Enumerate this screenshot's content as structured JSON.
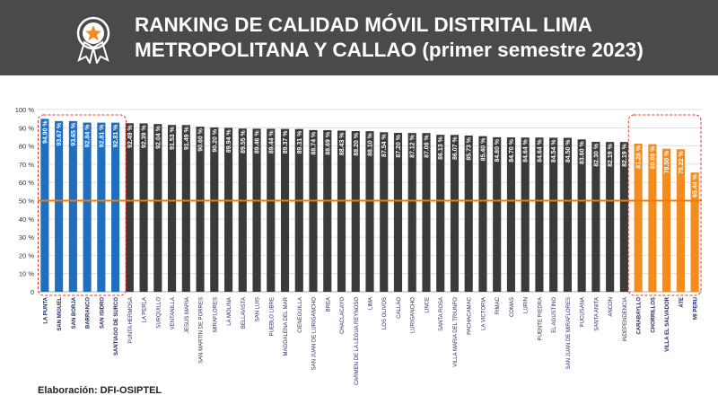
{
  "header": {
    "title_line1": "RANKING DE CALIDAD MÓVIL DISTRITAL LIMA",
    "title_line2": "METROPOLITANA Y CALLAO (primer semestre 2023)"
  },
  "footer": {
    "source": "Elaboración: DFI-OSIPTEL"
  },
  "colors": {
    "header_bg": "#4a4a4a",
    "top_bars": "#1f6fc0",
    "middle_bars": "#3a3a3a",
    "bottom_bars": "#f28c1e",
    "reference_line": "#ef7d00",
    "highlight_box": "#e53935",
    "badge_star": "#f28c1e"
  },
  "chart_data": {
    "type": "bar",
    "title": "RANKING DE CALIDAD MÓVIL DISTRITAL LIMA METROPOLITANA Y CALLAO (primer semestre 2023)",
    "ylim": [
      0,
      100
    ],
    "y_tick_step": 10,
    "y_tick_format": "percent",
    "reference_line_value": 50,
    "grid": true,
    "categories": [
      "LA PUNTA",
      "SAN MIGUEL",
      "SAN BORJA",
      "BARRANCO",
      "SAN ISIDRO",
      "SANTIAGO DE SURCO",
      "PUNTA HERMOSA",
      "LA PERLA",
      "SURQUILLO",
      "VENTANILLA",
      "JESUS MARIA",
      "SAN MARTIN DE PORRES",
      "MIRAFLORES",
      "LA MOLINA",
      "BELLAVISTA",
      "SAN LUIS",
      "PUEBLO LIBRE",
      "MAGDALENA DEL MAR",
      "CIENEGUILLA",
      "SAN JUAN DE LURIGANCHO",
      "BREA",
      "CHACLACAYO",
      "CARMEN DE LA LEGUA REYNOSO",
      "LIMA",
      "LOS OLIVOS",
      "CALLAO",
      "LURIGANCHO",
      "LINCE",
      "SANTA ROSA",
      "VILLA MARIA DEL TRIUNFO",
      "PACHACAMAC",
      "LA VICTORIA",
      "RIMAC",
      "COMAS",
      "LURIN",
      "PUENTE PIEDRA",
      "EL AGUSTINO",
      "SAN JUAN DE MIRAFLORES",
      "PUCUSANA",
      "SANTA ANITA",
      "ANCON",
      "INDEPENDENCIA",
      "CARABAYLLO",
      "CHORRILLOS",
      "VILLA EL SALVADOR",
      "ATE",
      "MI PERU"
    ],
    "values": [
      94.9,
      93.67,
      93.65,
      92.84,
      92.81,
      92.81,
      92.49,
      92.39,
      92.04,
      91.53,
      91.49,
      90.6,
      90.2,
      89.94,
      89.55,
      89.46,
      89.44,
      89.37,
      89.31,
      88.74,
      88.69,
      88.43,
      88.2,
      88.1,
      87.54,
      87.2,
      87.12,
      87.08,
      86.13,
      86.07,
      85.73,
      85.4,
      84.8,
      84.7,
      84.64,
      84.64,
      84.54,
      84.5,
      83.6,
      82.3,
      82.19,
      82.19,
      81.28,
      80.98,
      78.5,
      78.22,
      65.44
    ],
    "value_labels": [
      "94.90 %",
      "93.67 %",
      "93.65 %",
      "92.84 %",
      "92.81 %",
      "92.81 %",
      "92.49 %",
      "92.39 %",
      "92.04 %",
      "91.53 %",
      "91.49 %",
      "90.60 %",
      "90.20 %",
      "89.94 %",
      "89.55 %",
      "89.46 %",
      "89.44 %",
      "89.37 %",
      "89.31 %",
      "88.74 %",
      "88.69 %",
      "88.43 %",
      "88.20 %",
      "88.10 %",
      "87.54 %",
      "87.20 %",
      "87.12 %",
      "87.08 %",
      "86.13 %",
      "86.07 %",
      "85.73 %",
      "85.40 %",
      "84.80 %",
      "84.70 %",
      "84.64 %",
      "84.64 %",
      "84.54 %",
      "84.50 %",
      "83.60 %",
      "82.30 %",
      "82.19 %",
      "82.19 %",
      "81.28 %",
      "80.98 %",
      "78.50 %",
      "78.22 %",
      "65.44 %"
    ],
    "group_sizes": {
      "top": 6,
      "bottom": 5
    }
  }
}
